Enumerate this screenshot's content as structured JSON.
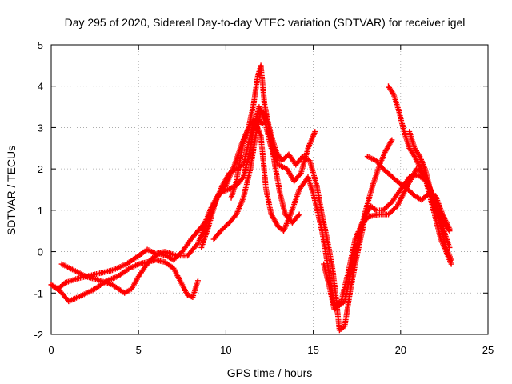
{
  "chart_data": {
    "type": "scatter",
    "title": "Day 295 of 2020, Sidereal Day-to-day VTEC variation (SDTVAR) for receiver igel",
    "xlabel": "GPS time / hours",
    "ylabel": "SDTVAR / TECUs",
    "xlim": [
      0,
      25
    ],
    "ylim": [
      -2,
      5
    ],
    "xticks": [
      "0",
      "5",
      "10",
      "15",
      "20",
      "25"
    ],
    "yticks": [
      "-2",
      "-1",
      "0",
      "1",
      "2",
      "3",
      "4",
      "5"
    ],
    "grid": true,
    "marker": "plus",
    "color": "#ff0000",
    "series": [
      {
        "name": "track-1",
        "points": [
          [
            0.0,
            -0.8
          ],
          [
            0.4,
            -0.9
          ],
          [
            0.8,
            -0.75
          ],
          [
            1.5,
            -0.65
          ],
          [
            2.5,
            -0.55
          ],
          [
            3.5,
            -0.45
          ],
          [
            4.3,
            -0.3
          ],
          [
            5.0,
            -0.1
          ],
          [
            5.5,
            0.05
          ],
          [
            6.0,
            -0.05
          ],
          [
            6.5,
            0.0
          ],
          [
            7.2,
            -0.1
          ],
          [
            7.8,
            -0.1
          ],
          [
            8.4,
            0.2
          ],
          [
            9.0,
            0.8
          ],
          [
            9.5,
            1.3
          ],
          [
            10.0,
            1.6
          ],
          [
            10.5,
            2.1
          ],
          [
            10.9,
            2.6
          ],
          [
            11.3,
            3.0
          ],
          [
            11.6,
            3.2
          ],
          [
            12.0,
            2.8
          ],
          [
            12.3,
            1.5
          ],
          [
            12.6,
            0.9
          ],
          [
            13.0,
            0.6
          ],
          [
            13.3,
            0.5
          ],
          [
            13.7,
            0.9
          ],
          [
            14.2,
            1.5
          ],
          [
            14.7,
            1.8
          ],
          [
            15.0,
            1.4
          ],
          [
            15.5,
            0.5
          ],
          [
            15.9,
            -0.5
          ],
          [
            16.2,
            -1.3
          ],
          [
            16.6,
            -1.2
          ],
          [
            17.0,
            -0.5
          ],
          [
            17.4,
            0.3
          ],
          [
            17.8,
            0.7
          ],
          [
            18.2,
            0.85
          ],
          [
            18.8,
            0.9
          ],
          [
            19.3,
            0.9
          ],
          [
            19.8,
            1.1
          ],
          [
            20.4,
            1.6
          ],
          [
            20.9,
            2.0
          ],
          [
            21.3,
            1.9
          ],
          [
            21.8,
            1.4
          ],
          [
            22.3,
            0.8
          ],
          [
            22.8,
            0.5
          ]
        ]
      },
      {
        "name": "track-2",
        "points": [
          [
            0.0,
            -0.8
          ],
          [
            0.5,
            -0.95
          ],
          [
            1.0,
            -1.2
          ],
          [
            1.8,
            -1.05
          ],
          [
            2.5,
            -0.9
          ],
          [
            3.2,
            -0.7
          ],
          [
            3.8,
            -0.6
          ],
          [
            4.5,
            -0.4
          ],
          [
            5.0,
            -0.3
          ],
          [
            5.5,
            -0.25
          ],
          [
            6.0,
            -0.2
          ],
          [
            6.5,
            -0.25
          ],
          [
            7.0,
            -0.4
          ],
          [
            7.5,
            -0.8
          ],
          [
            7.8,
            -1.05
          ],
          [
            8.1,
            -1.1
          ],
          [
            8.4,
            -0.7
          ]
        ]
      },
      {
        "name": "track-3",
        "points": [
          [
            0.6,
            -0.3
          ],
          [
            1.3,
            -0.45
          ],
          [
            2.0,
            -0.6
          ],
          [
            2.8,
            -0.7
          ],
          [
            3.5,
            -0.8
          ],
          [
            4.2,
            -1.0
          ],
          [
            4.6,
            -0.9
          ],
          [
            5.0,
            -0.6
          ],
          [
            5.4,
            -0.35
          ],
          [
            5.8,
            -0.15
          ],
          [
            6.2,
            -0.05
          ],
          [
            6.6,
            -0.1
          ],
          [
            7.0,
            -0.2
          ],
          [
            7.5,
            0.0
          ],
          [
            8.0,
            0.3
          ],
          [
            8.4,
            0.5
          ],
          [
            8.8,
            0.7
          ],
          [
            9.2,
            1.1
          ],
          [
            9.6,
            1.4
          ],
          [
            10.1,
            1.5
          ],
          [
            10.6,
            1.6
          ],
          [
            11.0,
            1.8
          ],
          [
            11.3,
            2.3
          ],
          [
            11.6,
            3.0
          ],
          [
            11.9,
            3.5
          ],
          [
            12.2,
            3.2
          ],
          [
            12.6,
            2.5
          ],
          [
            13.0,
            2.1
          ],
          [
            13.5,
            2.0
          ],
          [
            13.9,
            1.7
          ],
          [
            14.3,
            1.9
          ],
          [
            14.7,
            2.5
          ],
          [
            15.1,
            2.9
          ]
        ]
      },
      {
        "name": "track-4",
        "points": [
          [
            9.3,
            0.3
          ],
          [
            9.7,
            0.5
          ],
          [
            10.2,
            0.7
          ],
          [
            10.6,
            0.9
          ],
          [
            11.0,
            1.3
          ],
          [
            11.4,
            2.0
          ],
          [
            11.7,
            2.8
          ],
          [
            12.0,
            3.4
          ],
          [
            12.3,
            3.3
          ],
          [
            12.6,
            2.8
          ],
          [
            12.9,
            2.4
          ],
          [
            13.2,
            2.2
          ],
          [
            13.6,
            2.35
          ],
          [
            14.0,
            2.1
          ],
          [
            14.4,
            2.3
          ],
          [
            14.8,
            2.2
          ],
          [
            15.2,
            1.6
          ],
          [
            15.5,
            0.9
          ],
          [
            15.8,
            0.3
          ],
          [
            16.1,
            -0.4
          ],
          [
            16.3,
            -1.1
          ],
          [
            16.5,
            -1.9
          ],
          [
            16.8,
            -1.8
          ],
          [
            17.1,
            -1.0
          ],
          [
            17.4,
            -0.3
          ],
          [
            17.7,
            0.3
          ],
          [
            18.0,
            0.9
          ],
          [
            18.3,
            1.1
          ],
          [
            18.6,
            1.0
          ],
          [
            19.0,
            1.0
          ],
          [
            19.5,
            1.2
          ],
          [
            20.0,
            1.5
          ],
          [
            20.5,
            1.8
          ],
          [
            21.0,
            1.85
          ],
          [
            21.5,
            1.7
          ],
          [
            22.0,
            1.2
          ],
          [
            22.4,
            0.6
          ],
          [
            22.8,
            0.1
          ]
        ]
      },
      {
        "name": "track-5",
        "points": [
          [
            10.3,
            1.3
          ],
          [
            10.6,
            1.7
          ],
          [
            10.8,
            2.2
          ],
          [
            11.0,
            2.65
          ],
          [
            11.3,
            3.0
          ],
          [
            11.6,
            3.6
          ],
          [
            11.8,
            4.2
          ],
          [
            12.0,
            4.5
          ],
          [
            12.2,
            3.6
          ],
          [
            12.5,
            2.9
          ],
          [
            12.8,
            2.1
          ],
          [
            13.1,
            1.4
          ],
          [
            13.4,
            0.9
          ],
          [
            13.8,
            0.7
          ],
          [
            14.2,
            0.9
          ]
        ]
      },
      {
        "name": "track-6",
        "points": [
          [
            8.6,
            0.1
          ],
          [
            9.0,
            0.6
          ],
          [
            9.4,
            1.2
          ],
          [
            9.8,
            1.6
          ],
          [
            10.2,
            1.9
          ],
          [
            10.6,
            2.0
          ],
          [
            11.0,
            2.1
          ],
          [
            11.4,
            2.8
          ],
          [
            11.8,
            3.2
          ],
          [
            12.1,
            3.1
          ]
        ]
      },
      {
        "name": "track-7",
        "points": [
          [
            18.1,
            2.3
          ],
          [
            18.6,
            2.2
          ],
          [
            19.0,
            2.0
          ],
          [
            19.4,
            1.85
          ],
          [
            19.8,
            1.7
          ],
          [
            20.3,
            1.55
          ],
          [
            20.8,
            1.35
          ],
          [
            21.2,
            1.25
          ],
          [
            21.6,
            1.4
          ],
          [
            22.0,
            1.35
          ],
          [
            22.4,
            0.9
          ],
          [
            22.8,
            0.55
          ]
        ]
      },
      {
        "name": "track-8",
        "points": [
          [
            19.3,
            4.0
          ],
          [
            19.6,
            3.8
          ],
          [
            19.9,
            3.4
          ],
          [
            20.2,
            2.9
          ],
          [
            20.5,
            2.5
          ],
          [
            20.8,
            2.3
          ],
          [
            21.1,
            2.05
          ],
          [
            21.4,
            1.8
          ],
          [
            21.7,
            1.3
          ],
          [
            22.0,
            0.8
          ],
          [
            22.3,
            0.3
          ],
          [
            22.6,
            0.0
          ],
          [
            22.9,
            -0.3
          ]
        ]
      },
      {
        "name": "track-9",
        "points": [
          [
            15.6,
            -0.3
          ],
          [
            15.9,
            -0.8
          ],
          [
            16.2,
            -1.4
          ],
          [
            16.5,
            -1.3
          ],
          [
            16.8,
            -1.2
          ],
          [
            17.1,
            -0.6
          ],
          [
            17.4,
            0.0
          ],
          [
            17.7,
            0.5
          ],
          [
            18.0,
            1.0
          ],
          [
            18.4,
            1.6
          ],
          [
            18.8,
            2.1
          ],
          [
            19.1,
            2.4
          ],
          [
            19.5,
            2.7
          ]
        ]
      },
      {
        "name": "track-10",
        "points": [
          [
            20.5,
            2.9
          ],
          [
            20.8,
            2.5
          ],
          [
            21.1,
            2.3
          ],
          [
            21.4,
            2.0
          ],
          [
            21.7,
            1.5
          ],
          [
            22.0,
            1.0
          ],
          [
            22.3,
            0.6
          ],
          [
            22.6,
            0.1
          ],
          [
            22.9,
            -0.2
          ]
        ]
      }
    ]
  }
}
